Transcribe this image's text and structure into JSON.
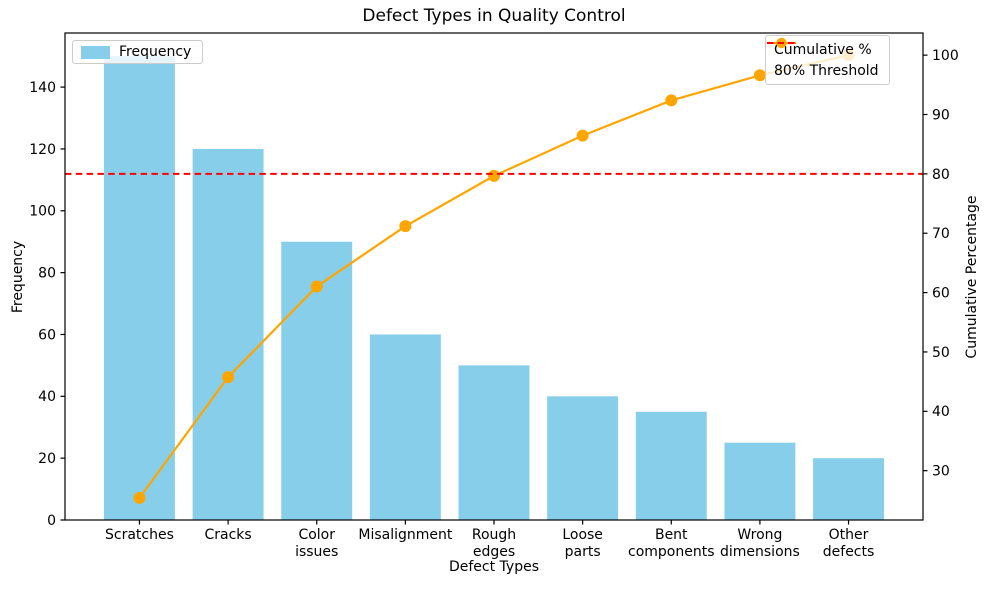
{
  "chart_data": {
    "type": "pareto (bar + line)",
    "title": "Defect Types in Quality Control",
    "xlabel": "Defect Types",
    "ylabel_left": "Frequency",
    "ylabel_right": "Cumulative Percentage",
    "categories": [
      "Scratches",
      "Cracks",
      "Color\nissues",
      "Misalignment",
      "Rough\nedges",
      "Loose\nparts",
      "Bent\ncomponents",
      "Wrong\ndimensions",
      "Other\ndefects"
    ],
    "bar_series": {
      "name": "Frequency",
      "color": "#87CEEB",
      "values": [
        150,
        120,
        90,
        60,
        50,
        40,
        35,
        25,
        20
      ]
    },
    "line_series": {
      "name": "Cumulative %",
      "color": "#FFA500",
      "values": [
        25.42,
        45.76,
        61.02,
        71.19,
        79.66,
        86.44,
        92.37,
        96.61,
        100.0
      ]
    },
    "threshold_line": {
      "name": "80% Threshold",
      "color": "#FF0000",
      "value": 80,
      "style": "dashed"
    },
    "axes": {
      "left": {
        "ticks": [
          0,
          20,
          40,
          60,
          80,
          100,
          120,
          140
        ],
        "range": [
          0,
          157.5
        ]
      },
      "right": {
        "ticks": [
          30,
          40,
          50,
          60,
          70,
          80,
          90,
          100
        ],
        "range": [
          21.69,
          103.73
        ]
      },
      "grid": false,
      "frame_color": "#000000",
      "legend_positions": [
        "upper left",
        "upper right"
      ]
    }
  }
}
